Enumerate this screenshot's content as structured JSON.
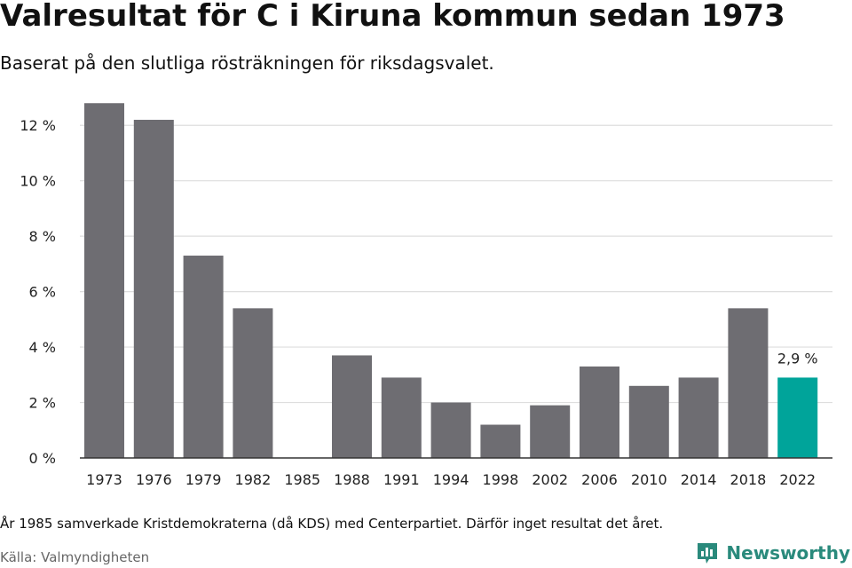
{
  "header": {
    "title": "Valresultat för C i Kiruna kommun sedan 1973",
    "subtitle": "Baserat på den slutliga rösträkningen för riksdagsvalet."
  },
  "footer": {
    "note": "År 1985 samverkade Kristdemokraterna (då KDS) med Centerpartiet. Därför inget resultat det året.",
    "source": "Källa: Valmyndigheten",
    "logo_text": "Newsworthy"
  },
  "colors": {
    "bar": "#6e6d72",
    "highlight": "#00a49a",
    "grid": "#dedede",
    "axis": "#333333",
    "brand": "#2a8a7c"
  },
  "icons": {
    "logo": "newsworthy-logo-icon"
  },
  "chart_data": {
    "type": "bar",
    "title": "Valresultat för C i Kiruna kommun sedan 1973",
    "subtitle": "Baserat på den slutliga rösträkningen för riksdagsvalet.",
    "xlabel": "",
    "ylabel": "",
    "categories": [
      "1973",
      "1976",
      "1979",
      "1982",
      "1985",
      "1988",
      "1991",
      "1994",
      "1998",
      "2002",
      "2006",
      "2010",
      "2014",
      "2018",
      "2022"
    ],
    "values": [
      12.8,
      12.2,
      7.3,
      5.4,
      null,
      3.7,
      2.9,
      2.0,
      1.2,
      1.9,
      3.3,
      2.6,
      2.9,
      5.4,
      2.9
    ],
    "ylim": [
      0,
      13
    ],
    "yticks": [
      0,
      2,
      4,
      6,
      8,
      10,
      12
    ],
    "ytick_labels": [
      "0 %",
      "2 %",
      "4 %",
      "6 %",
      "8 %",
      "10 %",
      "12 %"
    ],
    "grid": true,
    "highlight_index": 14,
    "annotations": [
      {
        "category": "2022",
        "text": "2,9 %"
      }
    ]
  }
}
